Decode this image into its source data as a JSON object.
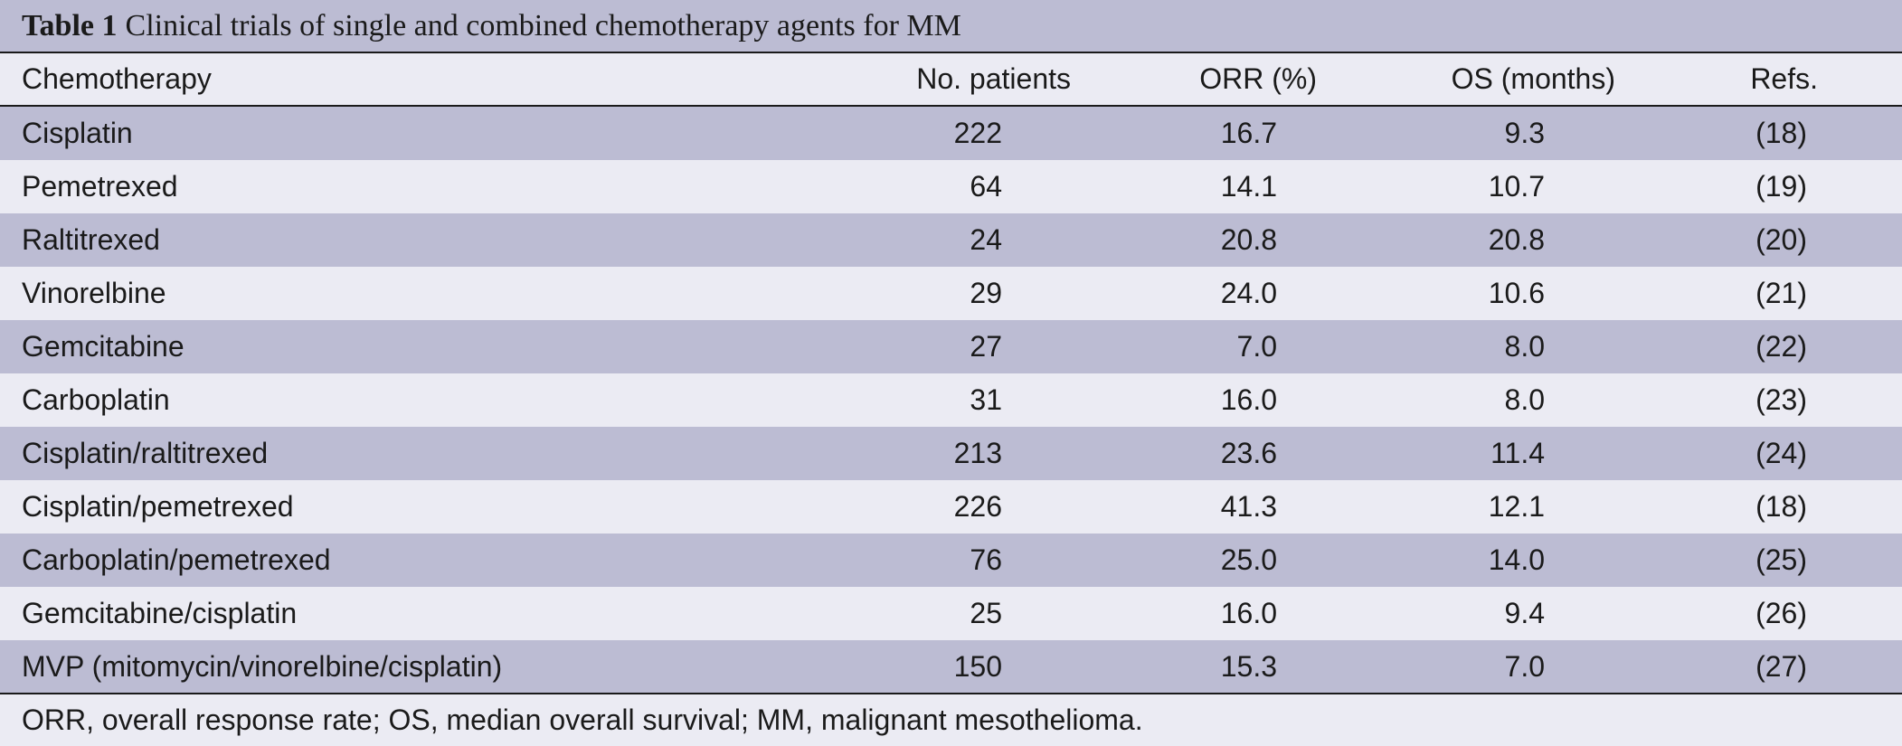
{
  "table": {
    "label": "Table 1",
    "caption": "Clinical trials of single and combined chemotherapy agents for MM",
    "headers": {
      "chemotherapy": "Chemotherapy",
      "patients": "No. patients",
      "orr": "ORR (%)",
      "os": "OS (months)",
      "refs": "Refs."
    },
    "rows": [
      {
        "chemotherapy": "Cisplatin",
        "patients": "222",
        "orr": "16.7",
        "os": "9.3",
        "refs": "(18)"
      },
      {
        "chemotherapy": "Pemetrexed",
        "patients": "64",
        "orr": "14.1",
        "os": "10.7",
        "refs": "(19)"
      },
      {
        "chemotherapy": "Raltitrexed",
        "patients": "24",
        "orr": "20.8",
        "os": "20.8",
        "refs": "(20)"
      },
      {
        "chemotherapy": "Vinorelbine",
        "patients": "29",
        "orr": "24.0",
        "os": "10.6",
        "refs": "(21)"
      },
      {
        "chemotherapy": "Gemcitabine",
        "patients": "27",
        "orr": "7.0",
        "os": "8.0",
        "refs": "(22)"
      },
      {
        "chemotherapy": "Carboplatin",
        "patients": "31",
        "orr": "16.0",
        "os": "8.0",
        "refs": "(23)"
      },
      {
        "chemotherapy": "Cisplatin/raltitrexed",
        "patients": "213",
        "orr": "23.6",
        "os": "11.4",
        "refs": "(24)"
      },
      {
        "chemotherapy": "Cisplatin/pemetrexed",
        "patients": "226",
        "orr": "41.3",
        "os": "12.1",
        "refs": "(18)"
      },
      {
        "chemotherapy": "Carboplatin/pemetrexed",
        "patients": "76",
        "orr": "25.0",
        "os": "14.0",
        "refs": "(25)"
      },
      {
        "chemotherapy": "Gemcitabine/cisplatin",
        "patients": "25",
        "orr": "16.0",
        "os": "9.4",
        "refs": "(26)"
      },
      {
        "chemotherapy": "MVP (mitomycin/vinorelbine/cisplatin)",
        "patients": "150",
        "orr": "15.3",
        "os": "7.0",
        "refs": "(27)"
      }
    ],
    "footnote": "ORR, overall response rate; OS, median overall survival; MM, malignant mesothelioma."
  },
  "colors": {
    "band": "#bcbcd3",
    "light": "#ebebf3",
    "text": "#1a1a1a"
  }
}
